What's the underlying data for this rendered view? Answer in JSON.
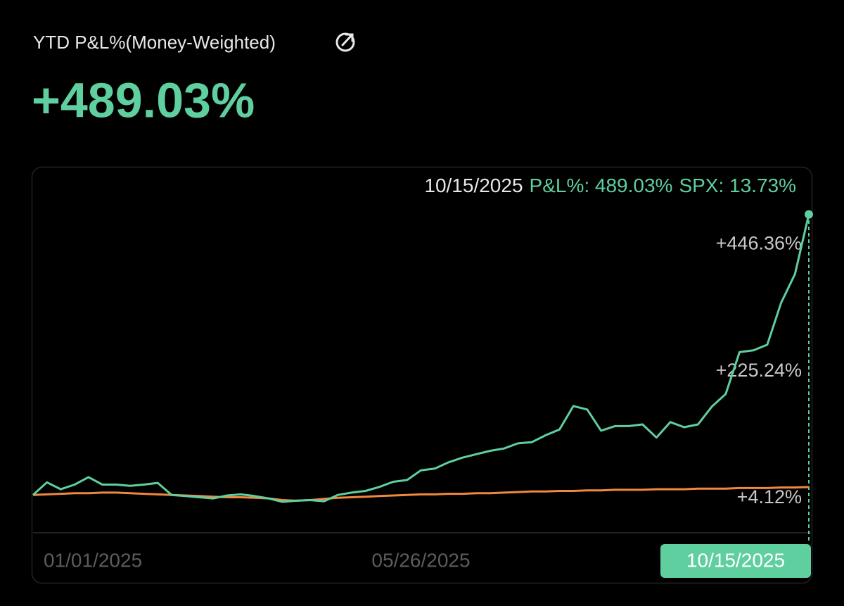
{
  "header": {
    "title": "YTD P&L%(Money-Weighted)",
    "value": "+489.03%"
  },
  "chart_data": {
    "type": "line",
    "tooltip": {
      "date": "10/15/2025",
      "pnl": "P&L%: 489.03%",
      "spx": "SPX: 13.73%"
    },
    "categories": [
      "01/01/2025",
      null,
      null,
      null,
      null,
      null,
      null,
      null,
      null,
      null,
      null,
      null,
      null,
      null,
      null,
      null,
      null,
      null,
      null,
      null,
      null,
      null,
      null,
      null,
      null,
      null,
      null,
      null,
      "05/26/2025",
      null,
      null,
      null,
      null,
      null,
      null,
      null,
      null,
      null,
      null,
      null,
      null,
      null,
      null,
      null,
      null,
      null,
      null,
      null,
      null,
      null,
      null,
      null,
      null,
      null,
      null,
      null,
      "10/15/2025"
    ],
    "series": [
      {
        "name": "P&L%",
        "color": "#5fcf9f",
        "values": [
          0,
          22,
          10,
          18,
          31,
          18,
          18,
          16,
          18,
          21,
          0,
          -2,
          -4,
          -6,
          -1,
          1,
          -2,
          -6,
          -12,
          -10,
          -9,
          -11,
          0,
          4,
          7,
          14,
          23,
          26,
          43,
          46,
          57,
          65,
          71,
          77,
          81,
          90,
          92,
          104,
          114,
          155,
          149,
          112,
          120,
          120,
          123,
          100,
          127,
          118,
          123,
          154,
          176,
          249,
          252,
          262,
          335,
          385,
          489.03
        ]
      },
      {
        "name": "SPX",
        "color": "#f0883e",
        "values": [
          0,
          1,
          2,
          3,
          3,
          4,
          4,
          3,
          2,
          1,
          0,
          -1,
          -2,
          -3,
          -4,
          -4,
          -5,
          -6,
          -9,
          -10,
          -9,
          -7,
          -5,
          -4,
          -3,
          -2,
          -1,
          0,
          1,
          1,
          2,
          2,
          3,
          3,
          4,
          5,
          6,
          6,
          7,
          7,
          8,
          8,
          9,
          9,
          9,
          10,
          10,
          10,
          11,
          11,
          11,
          12,
          12,
          12,
          13,
          13,
          13.73
        ]
      }
    ],
    "ylim": [
      -66,
      507
    ],
    "yticks": [
      {
        "value": 446.36,
        "label": "+446.36%"
      },
      {
        "value": 225.24,
        "label": "+225.24%"
      },
      {
        "value": 4.12,
        "label": "+4.12%"
      }
    ]
  }
}
